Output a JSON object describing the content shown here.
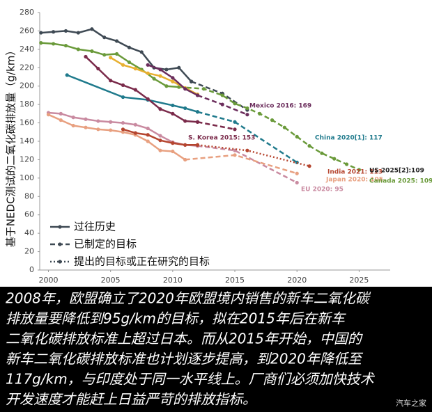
{
  "chart_data": {
    "type": "line",
    "y_axis_label": "基于NEDC测试的二氧化碳排放量（g/km）",
    "xlim": [
      1999.3,
      2027.5
    ],
    "ylim": [
      0,
      280
    ],
    "xticks": [
      2000,
      2005,
      2010,
      2015,
      2020,
      2025
    ],
    "yticks": [
      0,
      20,
      40,
      60,
      80,
      100,
      120,
      140,
      160,
      180,
      200,
      220,
      240,
      260,
      280
    ],
    "legend": [
      {
        "label": "过往历史",
        "style": "solid"
      },
      {
        "label": "已制定的目标",
        "style": "dashed"
      },
      {
        "label": "提出的目标或正在研究的目标",
        "style": "dotted"
      }
    ],
    "series": [
      {
        "color": "#3f4a54",
        "segments": [
          {
            "style": "solid",
            "x": [
              1999.4,
              2000.4,
              2001.4,
              2002.4,
              2003.5,
              2004.5,
              2005.5,
              2006.5,
              2007.5,
              2008.5,
              2009.5,
              2010.5,
              2011.5
            ],
            "values": [
              258,
              259,
              260,
              258,
              262,
              253,
              249,
              242,
              237,
              220,
              218,
              220,
              205
            ]
          },
          {
            "style": "dashed",
            "x": [
              2011.5,
              2014,
              2016
            ],
            "values": [
              205,
              192,
              174
            ]
          }
        ]
      },
      {
        "color": "#6a9a3a",
        "segments": [
          {
            "style": "solid",
            "x": [
              1999.4,
              2000.4,
              2001.4,
              2002.4,
              2003.5,
              2004.5,
              2005.5,
              2006.5,
              2007.5,
              2008.5,
              2009.5,
              2010.5
            ],
            "values": [
              247,
              246,
              244,
              240,
              238,
              234,
              235,
              226,
              218,
              208,
              200,
              199
            ]
          },
          {
            "style": "dashed",
            "x": [
              2010.5,
              2012.5,
              2014,
              2015,
              2016,
              2017,
              2018,
              2019,
              2020,
              2021,
              2022,
              2023,
              2024,
              2025
            ],
            "values": [
              199,
              197,
              190,
              181,
              176,
              170,
              163,
              155,
              145,
              135,
              127,
              121,
              115,
              109
            ]
          }
        ]
      },
      {
        "color": "#e8b030",
        "segments": [
          {
            "style": "solid",
            "x": [
              2005,
              2006,
              2007,
              2008,
              2009,
              2010,
              2011,
              2012
            ],
            "values": [
              231,
              223,
              219,
              214,
              211,
              205,
              198,
              191
            ]
          }
        ]
      },
      {
        "color": "#6b2d5c",
        "segments": [
          {
            "style": "solid",
            "x": [
              2008,
              2009,
              2010,
              2011,
              2012
            ],
            "values": [
              223,
              218,
              209,
              197,
              190
            ]
          },
          {
            "style": "dashed",
            "x": [
              2012,
              2014,
              2016
            ],
            "values": [
              190,
              180,
              169
            ]
          }
        ]
      },
      {
        "color": "#1f7a8c",
        "segments": [
          {
            "style": "solid",
            "x": [
              2001.5,
              2006,
              2008,
              2010,
              2011,
              2012
            ],
            "values": [
              212,
              188,
              185,
              179,
              176,
              172
            ]
          },
          {
            "style": "dashed",
            "x": [
              2012,
              2015,
              2020
            ],
            "values": [
              172,
              161,
              117
            ]
          }
        ]
      },
      {
        "color": "#7a2a4a",
        "segments": [
          {
            "style": "solid",
            "x": [
              2003,
              2004,
              2005,
              2006,
              2007,
              2008,
              2009,
              2010,
              2011,
              2012
            ],
            "values": [
              232,
              219,
              206,
              201,
              196,
              186,
              175,
              170,
              162,
              161
            ]
          },
          {
            "style": "dashed",
            "x": [
              2012,
              2015
            ],
            "values": [
              161,
              153
            ]
          }
        ]
      },
      {
        "color": "#c98aa0",
        "segments": [
          {
            "style": "solid",
            "x": [
              2000,
              2001,
              2002,
              2003,
              2004,
              2005,
              2006,
              2007,
              2008,
              2009,
              2010,
              2011,
              2012
            ],
            "values": [
              171,
              170,
              166,
              164,
              162,
              161,
              160,
              158,
              154,
              146,
              139,
              136,
              135
            ]
          },
          {
            "style": "dashed",
            "x": [
              2012,
              2015,
              2020
            ],
            "values": [
              135,
              130,
              95
            ]
          }
        ]
      },
      {
        "color": "#e8a080",
        "segments": [
          {
            "style": "solid",
            "x": [
              2000,
              2001,
              2002,
              2003,
              2004,
              2005,
              2006,
              2007,
              2008,
              2009,
              2010,
              2011
            ],
            "values": [
              169,
              163,
              157,
              155,
              153,
              152,
              150,
              147,
              140,
              130,
              129,
              120
            ]
          },
          {
            "style": "dashed",
            "x": [
              2011,
              2015,
              2020
            ],
            "values": [
              120,
              125,
              105
            ]
          }
        ]
      },
      {
        "color": "#b5452f",
        "segments": [
          {
            "style": "solid",
            "x": [
              2006,
              2007,
              2008,
              2009,
              2010,
              2011,
              2012
            ],
            "values": [
              153,
              149,
              147,
              141,
              138,
              136,
              136
            ]
          },
          {
            "style": "dotted",
            "x": [
              2012,
              2016,
              2021
            ],
            "values": [
              136,
              130,
              113
            ]
          }
        ]
      }
    ],
    "annotations": [
      {
        "text": "Mexico 2016: 169",
        "color": "#6b2d5c"
      },
      {
        "text": "S. Korea 2015: 153",
        "color": "#7a2a4a"
      },
      {
        "text": "China 2020[1]: 117",
        "color": "#1f7a8c"
      },
      {
        "text": "India 2021: 113",
        "color": "#b5452f"
      },
      {
        "text": "Japan 2020: 105",
        "color": "#e8a080"
      },
      {
        "text": "EU 2020: 95",
        "color": "#c98aa0"
      },
      {
        "text": "US 2025[2]:109",
        "color": "#222222"
      },
      {
        "text": "Canada 2025: 109",
        "color": "#6a9a3a"
      }
    ]
  },
  "caption": {
    "lines": [
      "2008年，欧盟确立了2020年欧盟境内销售的新车二氧化碳",
      "排放量要降低到95g/km的目标，拟在2015年后在新车",
      "二氧化碳排放标准上超过日本。而从2015年开始，中国的",
      "新车二氧化碳排放标准也计划逐步提高，到2020年降低至",
      "117g/km，与印度处于同一水平线上。厂商们必须加快技术",
      "开发速度才能赶上日益严苛的排放指标。"
    ],
    "watermark": "汽车之家"
  }
}
